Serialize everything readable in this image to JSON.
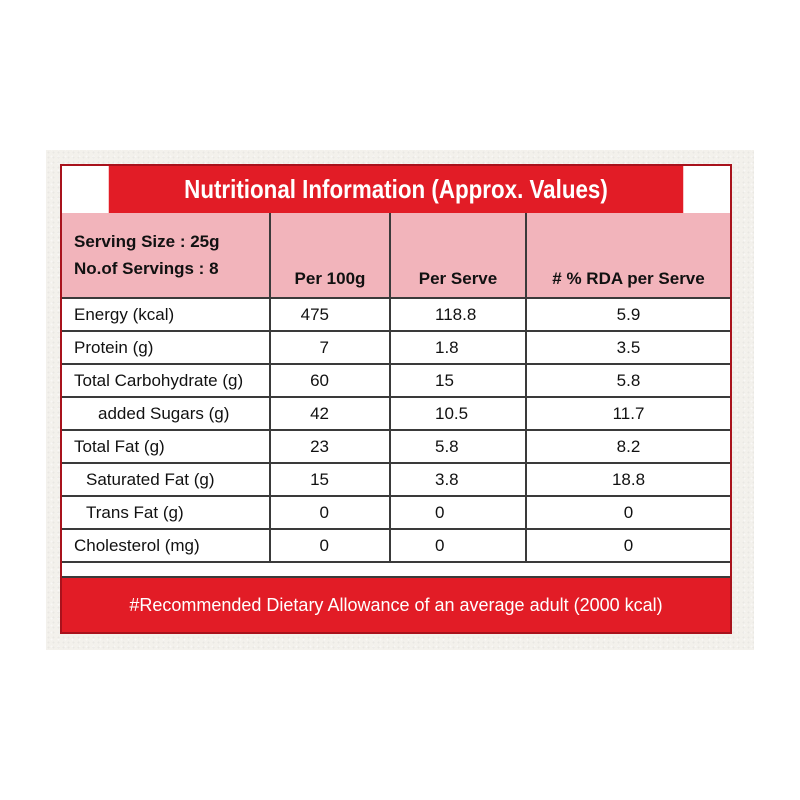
{
  "title": "Nutritional Information (Approx. Values)",
  "serving": {
    "size": "Serving Size : 25g",
    "servings": "No.of Servings : 8"
  },
  "columns": {
    "per100": "Per 100g",
    "perserve": "Per Serve",
    "rda": "# % RDA per Serve"
  },
  "rows": [
    {
      "name": "Energy (kcal)",
      "per100": "475",
      "perserve": "118.8",
      "rda": "5.9"
    },
    {
      "name": "Protein (g)",
      "per100": "7",
      "perserve": "1.8",
      "rda": "3.5"
    },
    {
      "name": "Total Carbohydrate (g)",
      "per100": "60",
      "perserve": "15",
      "rda": "5.8"
    },
    {
      "name": "added Sugars (g)",
      "per100": "42",
      "perserve": "10.5",
      "rda": "11.7"
    },
    {
      "name": "Total Fat (g)",
      "per100": "23",
      "perserve": "5.8",
      "rda": "8.2"
    },
    {
      "name": "Saturated Fat (g)",
      "per100": "15",
      "perserve": "3.8",
      "rda": "18.8"
    },
    {
      "name": "Trans Fat (g)",
      "per100": "0",
      "perserve": "0",
      "rda": "0"
    },
    {
      "name": "Cholesterol (mg)",
      "per100": "0",
      "perserve": "0",
      "rda": "0"
    }
  ],
  "footer": "#Recommended Dietary Allowance of an average adult (2000 kcal)",
  "colors": {
    "red": "#e21c26",
    "pink": "#f2b4bb",
    "border": "#3a3a3a"
  }
}
